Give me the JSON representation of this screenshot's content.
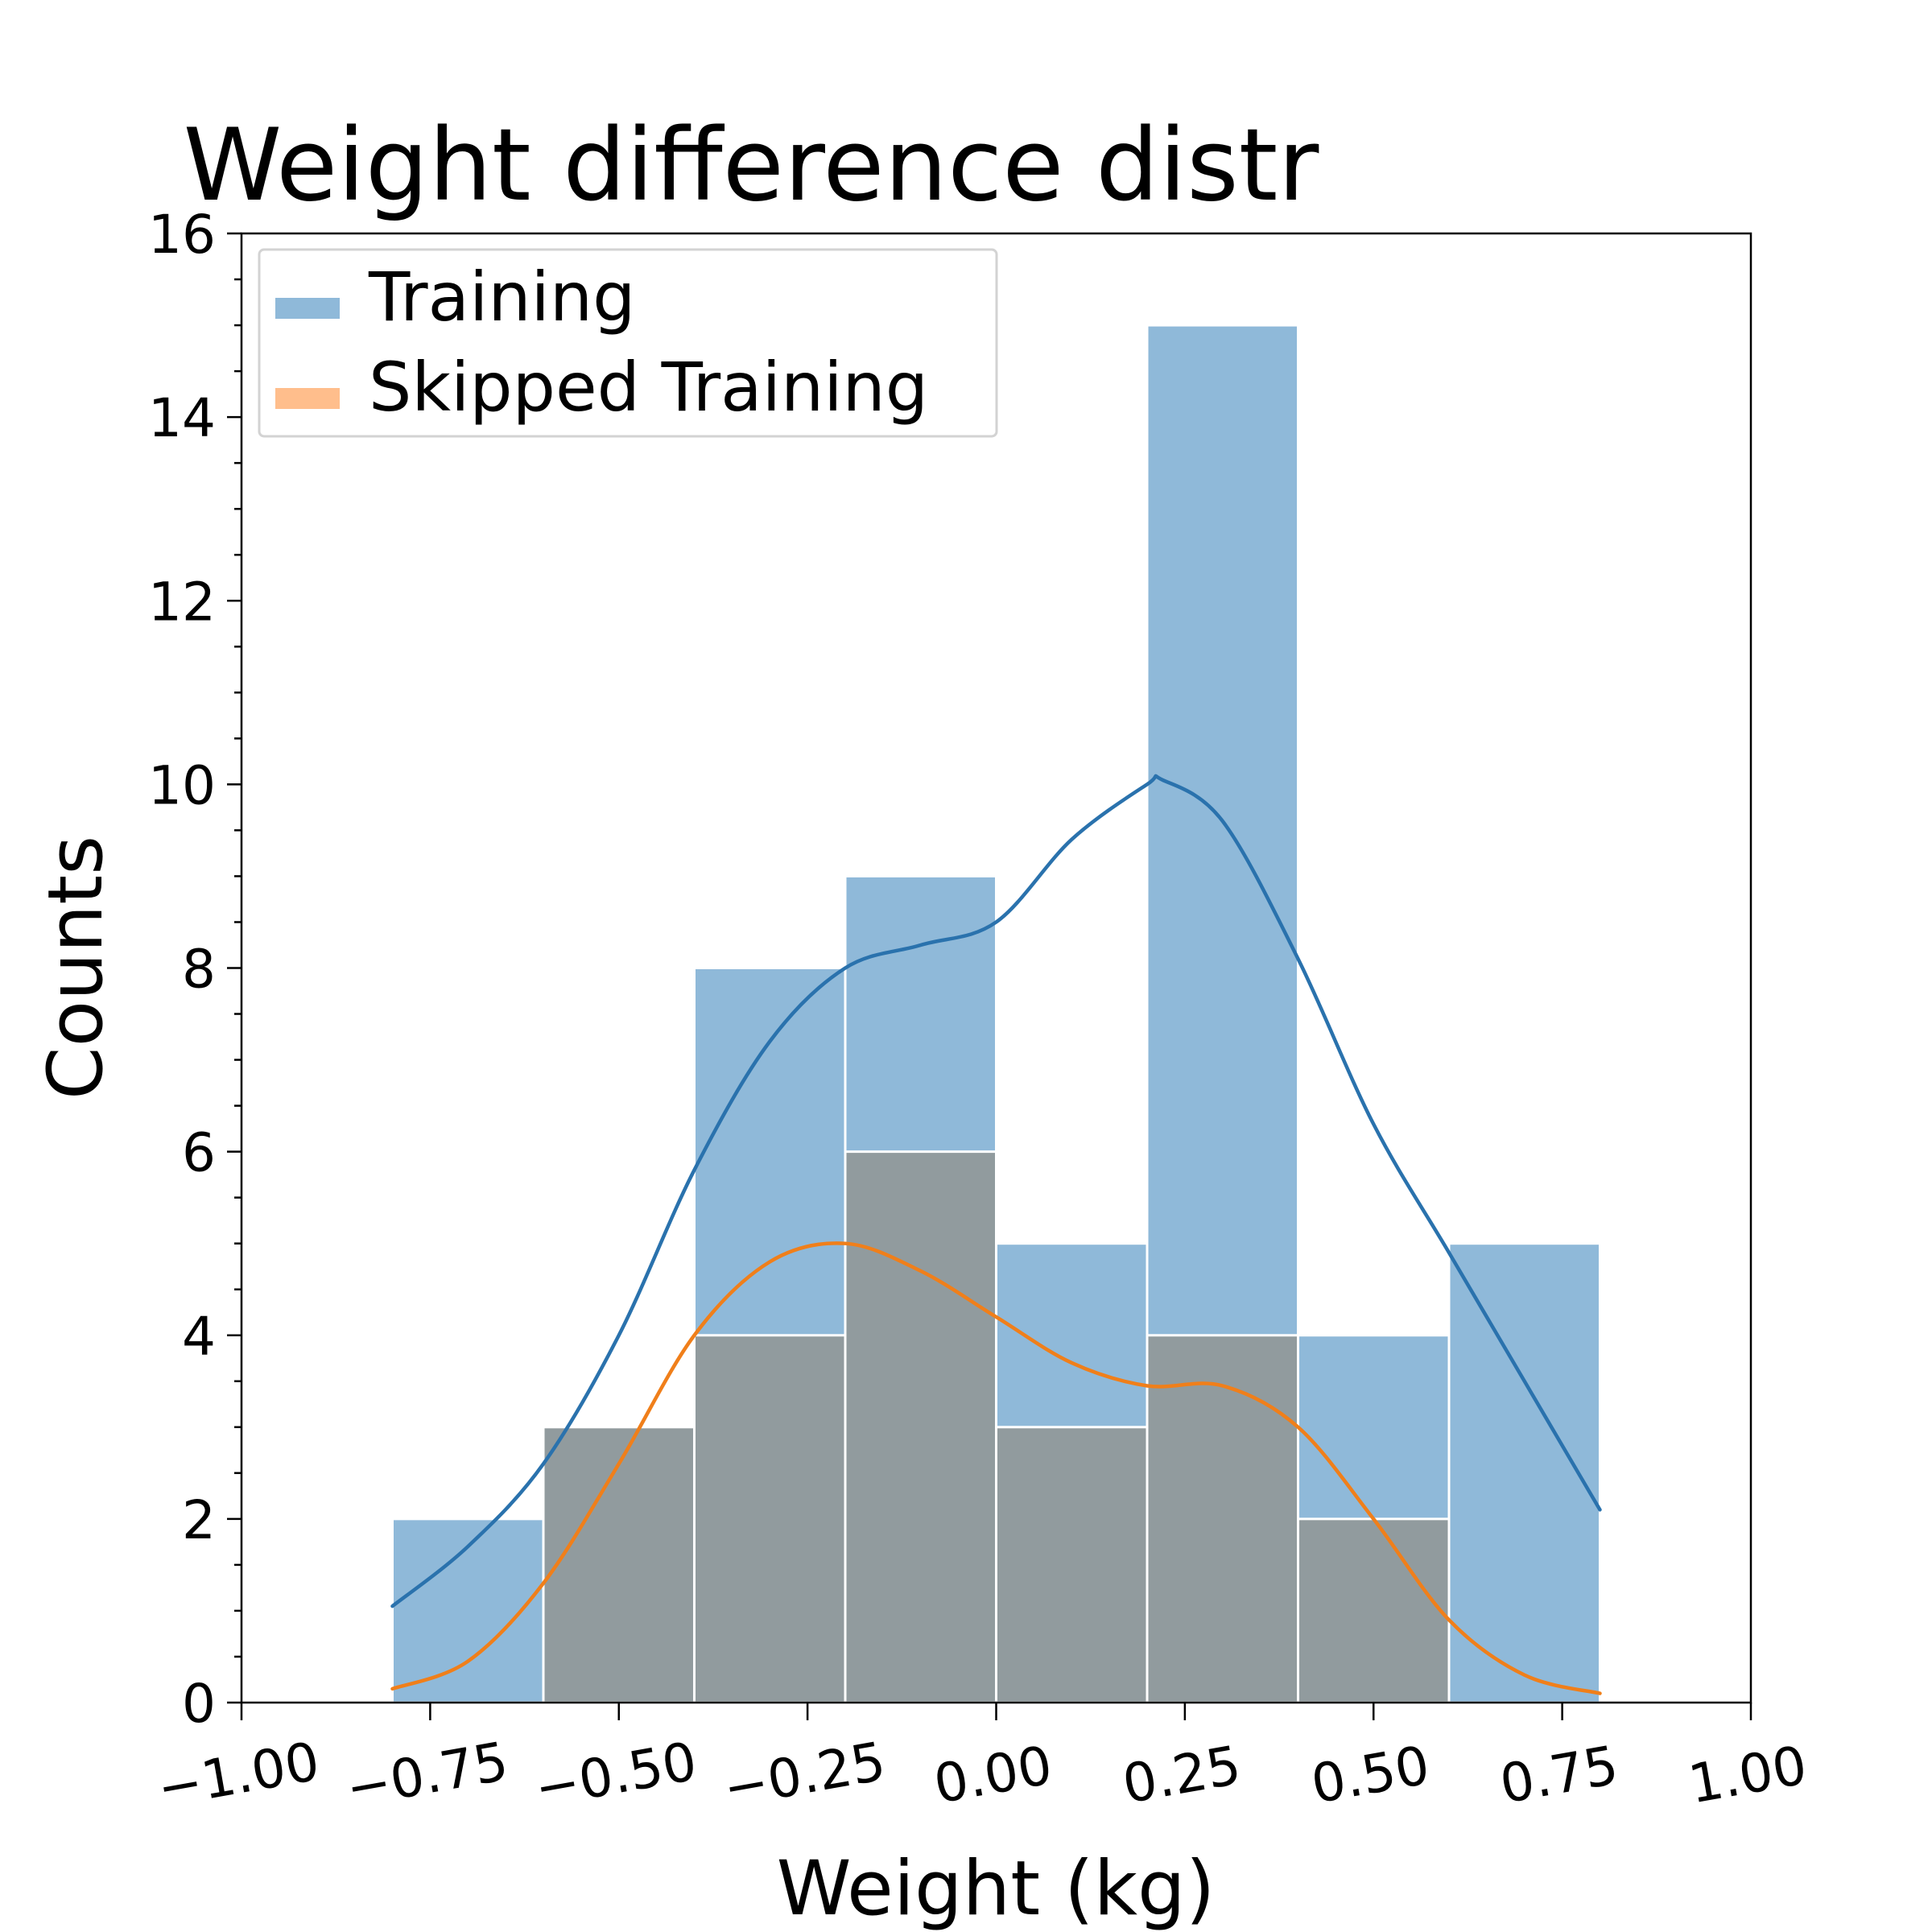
{
  "chart_data": {
    "type": "bar",
    "title": "Weight difference distr",
    "xlabel": "Weight (kg)",
    "ylabel": "Counts",
    "xlim": [
      -1.0,
      1.0
    ],
    "ylim": [
      0,
      16
    ],
    "xticks": [
      "−1.00",
      "−0.75",
      "−0.50",
      "−0.25",
      "0.00",
      "0.25",
      "0.50",
      "0.75",
      "1.00"
    ],
    "xtick_values": [
      -1.0,
      -0.75,
      -0.5,
      -0.25,
      0.0,
      0.25,
      0.5,
      0.75,
      1.0
    ],
    "yticks": [
      "0",
      "2",
      "4",
      "6",
      "8",
      "10",
      "12",
      "14",
      "16"
    ],
    "ytick_values": [
      0,
      2,
      4,
      6,
      8,
      10,
      12,
      14,
      16
    ],
    "bin_edges": [
      -0.8,
      -0.6,
      -0.4,
      -0.2,
      0.0,
      0.2,
      0.4,
      0.6,
      0.8
    ],
    "grid": false,
    "legend_position": "top-left",
    "series": [
      {
        "name": "Training",
        "values": [
          2,
          3,
          8,
          9,
          5,
          15,
          4,
          5
        ],
        "bar_color": "#8fb9d9",
        "line_color": "#2a72ad",
        "kde": {
          "x": [
            -0.8,
            -0.7,
            -0.6,
            -0.5,
            -0.4,
            -0.3,
            -0.2,
            -0.1,
            0.0,
            0.1,
            0.2,
            0.22,
            0.3,
            0.4,
            0.5,
            0.6,
            0.7,
            0.8
          ],
          "y": [
            1.05,
            1.7,
            2.6,
            4.0,
            5.8,
            7.2,
            8.0,
            8.25,
            8.5,
            9.4,
            10.0,
            10.05,
            9.6,
            8.1,
            6.3,
            4.9,
            3.5,
            2.1
          ]
        }
      },
      {
        "name": "Skipped Training",
        "values": [
          0,
          3,
          4,
          6,
          3,
          4,
          2,
          0
        ],
        "bar_color": "#919b9e",
        "legend_color": "#ffbe8c",
        "line_color": "#f07f1a",
        "kde": {
          "x": [
            -0.8,
            -0.7,
            -0.6,
            -0.5,
            -0.4,
            -0.3,
            -0.2,
            -0.1,
            0.0,
            0.1,
            0.2,
            0.3,
            0.4,
            0.5,
            0.6,
            0.7,
            0.8
          ],
          "y": [
            0.15,
            0.45,
            1.3,
            2.6,
            4.0,
            4.8,
            5.0,
            4.7,
            4.2,
            3.7,
            3.45,
            3.45,
            3.0,
            2.0,
            0.9,
            0.3,
            0.1
          ]
        }
      }
    ]
  }
}
